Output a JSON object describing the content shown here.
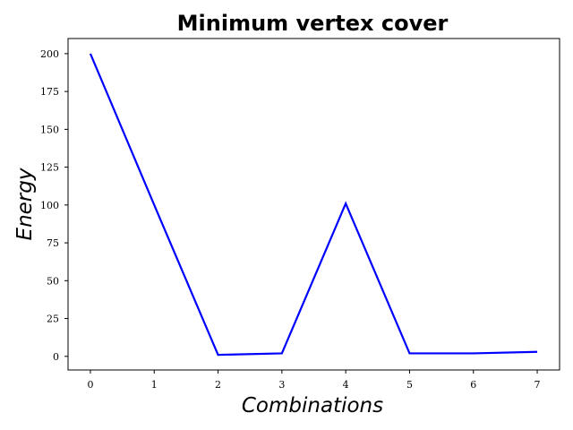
{
  "chart_data": {
    "type": "line",
    "title": "Minimum vertex cover",
    "xlabel": "Combinations",
    "ylabel": "Energy",
    "x": [
      0,
      1,
      2,
      3,
      4,
      5,
      6,
      7
    ],
    "series": [
      {
        "values": [
          200,
          100,
          1,
          2,
          101,
          2,
          2,
          3
        ],
        "color": "#0000ff"
      }
    ],
    "xlim": [
      -0.35,
      7.35
    ],
    "ylim": [
      -9,
      210
    ],
    "xticks": [
      0,
      1,
      2,
      3,
      4,
      5,
      6,
      7
    ],
    "yticks": [
      0,
      25,
      50,
      75,
      100,
      125,
      150,
      175,
      200
    ],
    "grid": false,
    "legend": false
  }
}
